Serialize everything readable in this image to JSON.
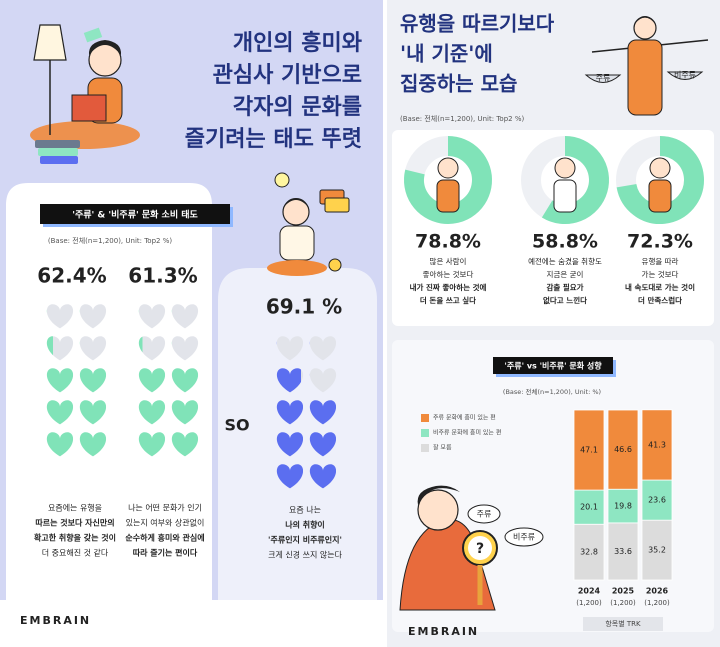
{
  "left": {
    "title": [
      "개인의 흥미와",
      "관심사 기반으로",
      "각자의 문화를",
      "즐기려는 태도 뚜렷"
    ],
    "tag": "'주류' & '비주류' 문화 소비 태도",
    "base_note": "(Base: 전체(n=1,200), Unit: Top2 %)",
    "connector": "SO",
    "stats": {
      "values": [
        62.4,
        61.3,
        69.1
      ],
      "value_labels": [
        "62.4%",
        "61.3%",
        "69.1 %"
      ],
      "descriptions": [
        [
          "요즘에는 유행을",
          "따르는 것보다 자신만의",
          "확고한 취향을 갖는 것이",
          "더 중요해진 것 같다"
        ],
        [
          "나는 어떤 문화가 인기",
          "있는지 여부와 상관없이",
          "순수하게 흥미와 관심에",
          "따라 즐기는 편이다"
        ],
        [
          "요즘 나는",
          "나의 취향이",
          "'주류인지 비주류인지'",
          "크게 신경 쓰지 않는다"
        ]
      ]
    },
    "logo": "EMBRAIN"
  },
  "right": {
    "title": [
      "유행을 따르기보다",
      "'내 기준'에",
      "집중하는 모습"
    ],
    "scale_labels": [
      "주류",
      "비주류"
    ],
    "base_note": "(Base: 전체(n=1,200), Unit: Top2 %)",
    "stats": {
      "values": [
        78.8,
        58.8,
        72.3
      ],
      "value_labels": [
        "78.8%",
        "58.8%",
        "72.3%"
      ],
      "descriptions": [
        [
          "많은 사람이",
          "좋아하는 것보다",
          "내가 진짜 좋아하는 것에",
          "더 돈을 쓰고 싶다"
        ],
        [
          "예전에는 숨겼을 취향도",
          "지금은 굳이",
          "감출 필요가",
          "없다고 느낀다"
        ],
        [
          "유행을 따라",
          "가는 것보다",
          "내 속도대로 가는 것이",
          "더 만족스럽다"
        ]
      ]
    },
    "bubbles": [
      "주류",
      "비주류"
    ],
    "logo": "EMBRAIN"
  },
  "chart_data": {
    "type": "bar",
    "stacked": true,
    "title": "'주류' vs '비주류' 문화 성향",
    "subtitle": "(Base: 전체(n=1,200), Unit: %)",
    "categories": [
      "2024",
      "2025",
      "2026"
    ],
    "category_notes": [
      "(1,200)",
      "(1,200)",
      "(1,200)"
    ],
    "series": [
      {
        "name": "잘 모름",
        "color": "#dcdcdc",
        "values": [
          32.8,
          33.6,
          35.2
        ]
      },
      {
        "name": "비주류 문화에 흥미 있는 편",
        "color": "#8ee6c2",
        "values": [
          20.1,
          19.8,
          23.6
        ]
      },
      {
        "name": "주류 문화에 흥미 있는 편",
        "color": "#f08a3c",
        "values": [
          47.1,
          46.6,
          41.3
        ]
      }
    ],
    "ylim": [
      0,
      100
    ],
    "source": "항목별 TRK"
  }
}
